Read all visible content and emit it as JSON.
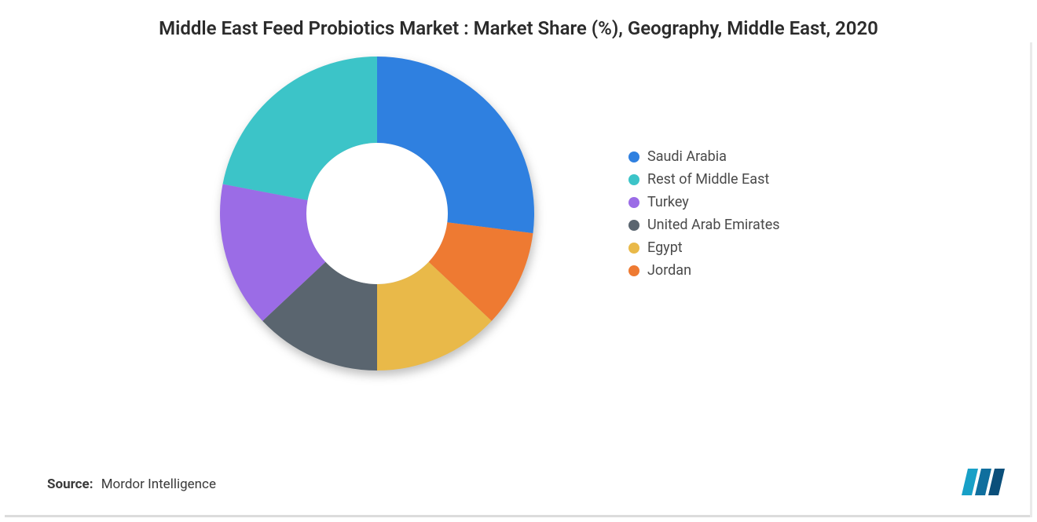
{
  "chart": {
    "type": "donut",
    "title": "Middle East Feed Probiotics Market : Market Share (%), Geography, Middle East, 2020",
    "title_fontsize": 24,
    "title_color": "#2b2b2b",
    "background_color": "#ffffff",
    "donut": {
      "outer_radius": 200,
      "inner_radius": 90,
      "shadow": true,
      "start_angle_deg": 0,
      "slices": [
        {
          "label": "Saudi Arabia",
          "value": 27,
          "color": "#2f80e0"
        },
        {
          "label": "Jordan",
          "value": 10,
          "color": "#ee7a32"
        },
        {
          "label": "Egypt",
          "value": 13,
          "color": "#e9b949"
        },
        {
          "label": "United Arab Emirates",
          "value": 13,
          "color": "#5a656f"
        },
        {
          "label": "Turkey",
          "value": 15,
          "color": "#9b6ce6"
        },
        {
          "label": "Rest of Middle East",
          "value": 22,
          "color": "#3cc4c8"
        }
      ]
    },
    "legend": {
      "position": "right",
      "fontsize": 18,
      "text_color": "#4a4a4a",
      "order": [
        "Saudi Arabia",
        "Rest of Middle East",
        "Turkey",
        "United Arab Emirates",
        "Egypt",
        "Jordan"
      ]
    }
  },
  "source": {
    "label": "Source:",
    "text": "Mordor Intelligence",
    "fontsize": 17,
    "color": "#3a3a3a"
  },
  "logo": {
    "name": "mordor-intelligence-logo",
    "bar_colors": [
      "#18a0c7",
      "#0f6f9e",
      "#0b4f7a"
    ]
  }
}
